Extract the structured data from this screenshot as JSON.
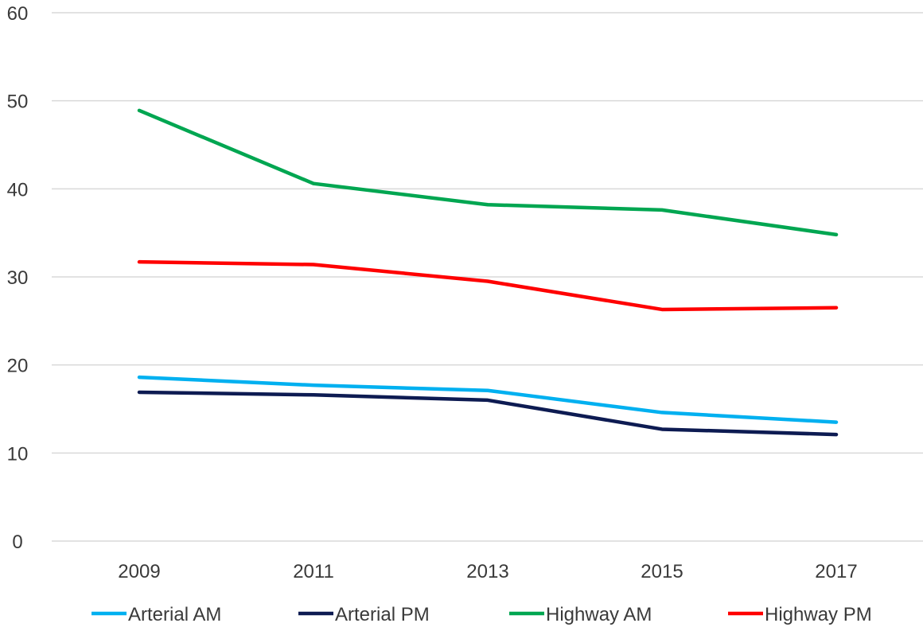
{
  "chart_data": {
    "type": "line",
    "categories": [
      "2009",
      "2011",
      "2013",
      "2015",
      "2017"
    ],
    "series": [
      {
        "name": "Arterial AM",
        "color": "#00B0F0",
        "values": [
          18.6,
          17.7,
          17.1,
          14.6,
          13.5
        ]
      },
      {
        "name": "Arterial PM",
        "color": "#0D1B52",
        "values": [
          16.9,
          16.6,
          16.0,
          12.7,
          12.1
        ]
      },
      {
        "name": "Highway AM",
        "color": "#00A651",
        "values": [
          48.9,
          40.6,
          38.2,
          37.6,
          34.8
        ]
      },
      {
        "name": "Highway PM",
        "color": "#FF0000",
        "values": [
          31.7,
          31.4,
          29.5,
          26.3,
          26.5
        ]
      }
    ],
    "yticks": [
      "0",
      "10",
      "20",
      "30",
      "40",
      "50",
      "60"
    ],
    "ylim": [
      0,
      60
    ],
    "title": "",
    "xlabel": "",
    "ylabel": "",
    "grid": true,
    "legend_position": "bottom"
  },
  "colors": {
    "gridline": "#D9D9D9",
    "text": "#3A3A3A"
  }
}
